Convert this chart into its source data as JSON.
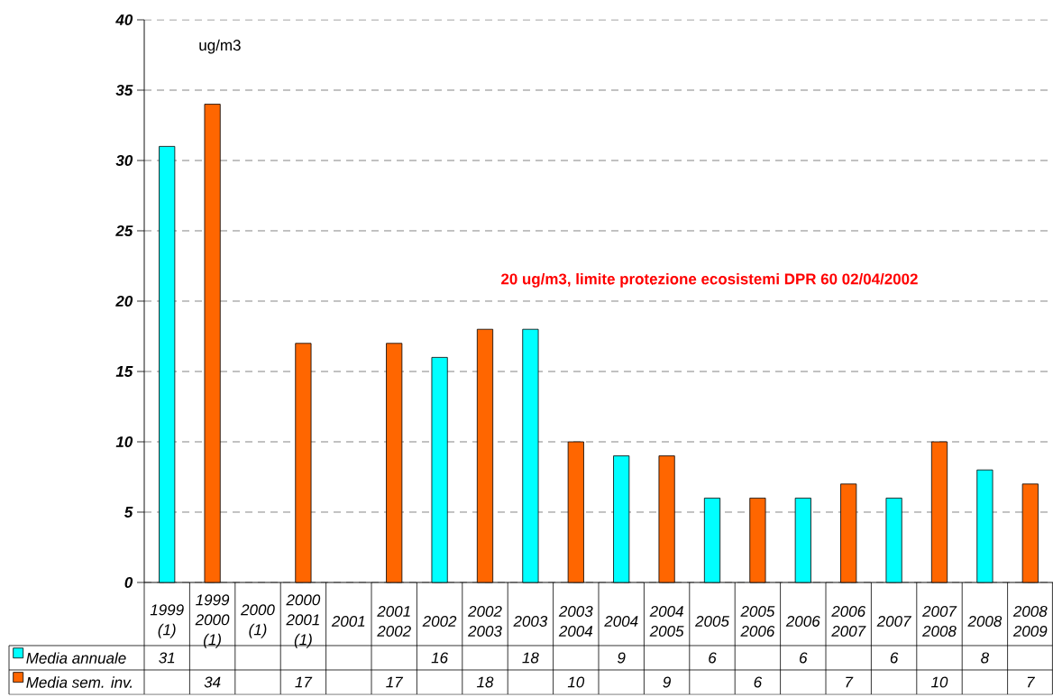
{
  "chart_data": {
    "type": "bar",
    "ylabel": "ug/m3",
    "annotations": [
      "20 ug/m3, limite protezione ecosistemi DPR 60 02/04/2002"
    ],
    "categories": [
      "1999 (1)",
      "1999 2000 (1)",
      "2000 (1)",
      "2000 2001 (1)",
      "2001",
      "2001 2002",
      "2002",
      "2002 2003",
      "2003",
      "2003 2004",
      "2004",
      "2004 2005",
      "2005",
      "2005 2006",
      "2006",
      "2006 2007",
      "2007",
      "2007 2008",
      "2008",
      "2008 2009"
    ],
    "series": [
      {
        "name": "Media annuale",
        "color": "#00ffff",
        "values": [
          31,
          null,
          null,
          null,
          null,
          null,
          16,
          null,
          18,
          null,
          9,
          null,
          6,
          null,
          6,
          null,
          6,
          null,
          8,
          null
        ]
      },
      {
        "name": "Media sem. inv.",
        "color": "#ff6600",
        "values": [
          null,
          34,
          null,
          17,
          null,
          17,
          null,
          18,
          null,
          10,
          null,
          9,
          null,
          6,
          null,
          7,
          null,
          10,
          null,
          7
        ]
      }
    ],
    "ylim": [
      0,
      40
    ],
    "yticks": [
      0,
      5,
      10,
      15,
      20,
      25,
      30,
      35,
      40
    ],
    "grid": "y",
    "legend": "bottom left",
    "data_labels": true
  }
}
